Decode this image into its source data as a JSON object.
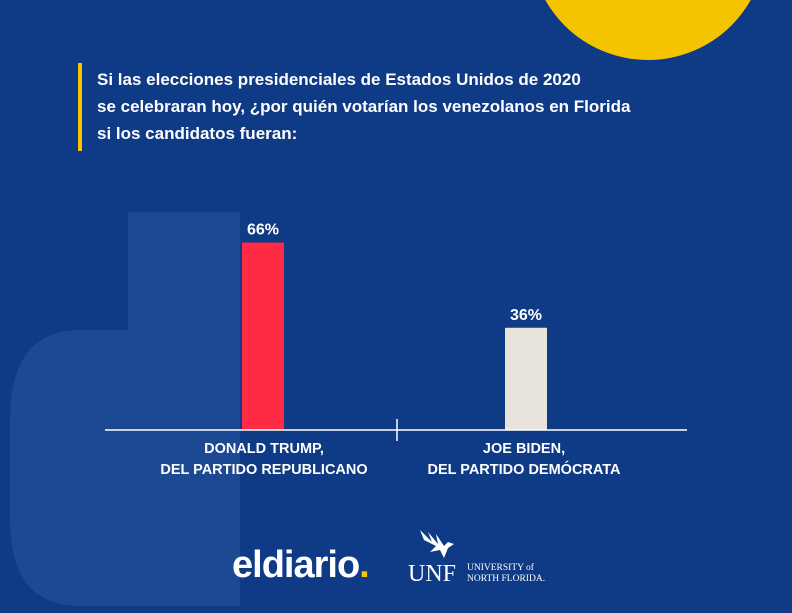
{
  "title_lines": [
    "Si las elecciones presidenciales de Estados Unidos de 2020",
    "se celebraran hoy, ¿por quién votarían los venezolanos en Florida",
    "si los candidatos fueran:"
  ],
  "chart_data": {
    "type": "bar",
    "categories": [
      "DONALD TRUMP, DEL PARTIDO REPUBLICANO",
      "JOE BIDEN, DEL PARTIDO DEMÓCRATA"
    ],
    "category_lines": [
      [
        "DONALD TRUMP,",
        "DEL PARTIDO REPUBLICANO"
      ],
      [
        "JOE BIDEN,",
        "DEL PARTIDO DEMÓCRATA"
      ]
    ],
    "values": [
      66,
      36
    ],
    "data_labels": [
      "66%",
      "36%"
    ],
    "bar_colors": [
      "#ff2a43",
      "#e8e4dc"
    ],
    "ylim": [
      0,
      100
    ],
    "title": "Si las elecciones presidenciales de Estados Unidos de 2020 se celebraran hoy, ¿por quién votarían los venezolanos en Florida si los candidatos fueran:",
    "xlabel": "",
    "ylabel": "",
    "grid": false,
    "legend": "none"
  },
  "colors": {
    "background": "#0f3a86",
    "accent": "#f5c400",
    "watermark": "#1d4892"
  },
  "footer": {
    "brand_name": "eldiario",
    "brand_dot": ".",
    "university_abbr": "UNF",
    "university_line1": "UNIVERSITY of",
    "university_line2": "NORTH FLORIDA."
  },
  "icons": {
    "watermark": "eldiario-d-watermark-icon",
    "osprey": "osprey-logo-icon"
  }
}
